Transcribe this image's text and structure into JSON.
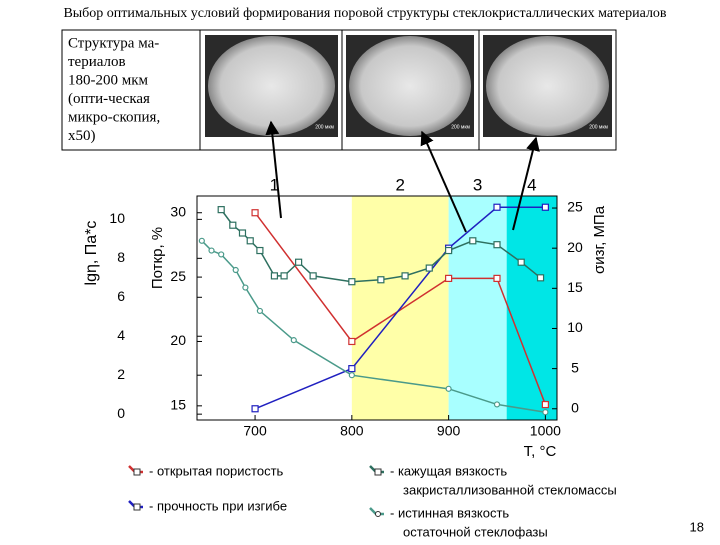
{
  "header": {
    "title": "Выбор оптимальных условий формирования поровой структуры стеклокристаллических материалов"
  },
  "table": {
    "text_lines": [
      "Структура ма-",
      "териалов",
      "180-200 мкм",
      "(опти-ческая",
      "микро-скопия,",
      "x50)"
    ],
    "images": [
      {
        "scale": "200 мкм"
      },
      {
        "scale": "200 мкм"
      },
      {
        "scale": "200 мкм"
      }
    ]
  },
  "chart_data": {
    "type": "line",
    "xlabel": "T, °C",
    "ylabel": "lgη, Па*с",
    "y2label": "Поткр, %",
    "y3label": "σизг, МПа",
    "xlim": [
      640,
      1012
    ],
    "xticks": [
      700,
      800,
      900,
      1000
    ],
    "ylim": [
      -0.3,
      11.2
    ],
    "yticks": [
      0,
      2,
      4,
      6,
      8,
      10
    ],
    "y2lim": [
      13.9,
      31.3
    ],
    "y2ticks": [
      15,
      20,
      25,
      30
    ],
    "y3lim": [
      -1.4,
      26.5
    ],
    "y3ticks": [
      0,
      5,
      10,
      15,
      20,
      25
    ],
    "regions": [
      {
        "label": "1",
        "from": 640,
        "to": 800,
        "color": "#ffffff"
      },
      {
        "label": "2",
        "from": 800,
        "to": 900,
        "color": "#ffffa8"
      },
      {
        "label": "3",
        "from": 900,
        "to": 960,
        "color": "#a8ffff"
      },
      {
        "label": "4",
        "from": 960,
        "to": 1012,
        "color": "#00e6e6"
      }
    ],
    "series": [
      {
        "name": [
          "- открытая пористость"
        ],
        "color": "#d03030",
        "marker": "square",
        "axis": "y2",
        "x": [
          700,
          800,
          900,
          950,
          1000
        ],
        "values": [
          30.0,
          20.0,
          24.9,
          24.9,
          15.1
        ]
      },
      {
        "name": [
          "- прочность при изгибе"
        ],
        "color": "#2020c0",
        "marker": "square",
        "axis": "y3",
        "x": [
          700,
          800,
          900,
          950,
          1000
        ],
        "values": [
          0.0,
          5.0,
          20.0,
          25.1,
          25.1
        ]
      },
      {
        "name": [
          "- кажущая вязкость",
          "закристаллизованной стекломассы"
        ],
        "color": "#2e7060",
        "marker": "square",
        "axis": "y",
        "x": [
          665,
          677,
          687,
          695,
          705,
          720,
          730,
          745,
          760,
          800,
          830,
          855,
          880,
          900,
          925,
          950,
          975,
          995
        ],
        "values": [
          10.5,
          9.7,
          9.3,
          8.9,
          8.4,
          7.1,
          7.1,
          7.8,
          7.1,
          6.8,
          6.9,
          7.1,
          7.5,
          8.4,
          8.9,
          8.7,
          7.8,
          7.0
        ]
      },
      {
        "name": [
          "- истинная вязкость",
          "остаточной стеклофазы"
        ],
        "color": "#4a9a8a",
        "marker": "circle",
        "axis": "y",
        "x": [
          645,
          655,
          665,
          680,
          690,
          705,
          740,
          800,
          900,
          950,
          1000
        ],
        "values": [
          8.9,
          8.4,
          8.2,
          7.4,
          6.5,
          5.3,
          3.8,
          2.0,
          1.3,
          0.5,
          0.1
        ]
      }
    ]
  },
  "footer": {
    "page": "18"
  }
}
